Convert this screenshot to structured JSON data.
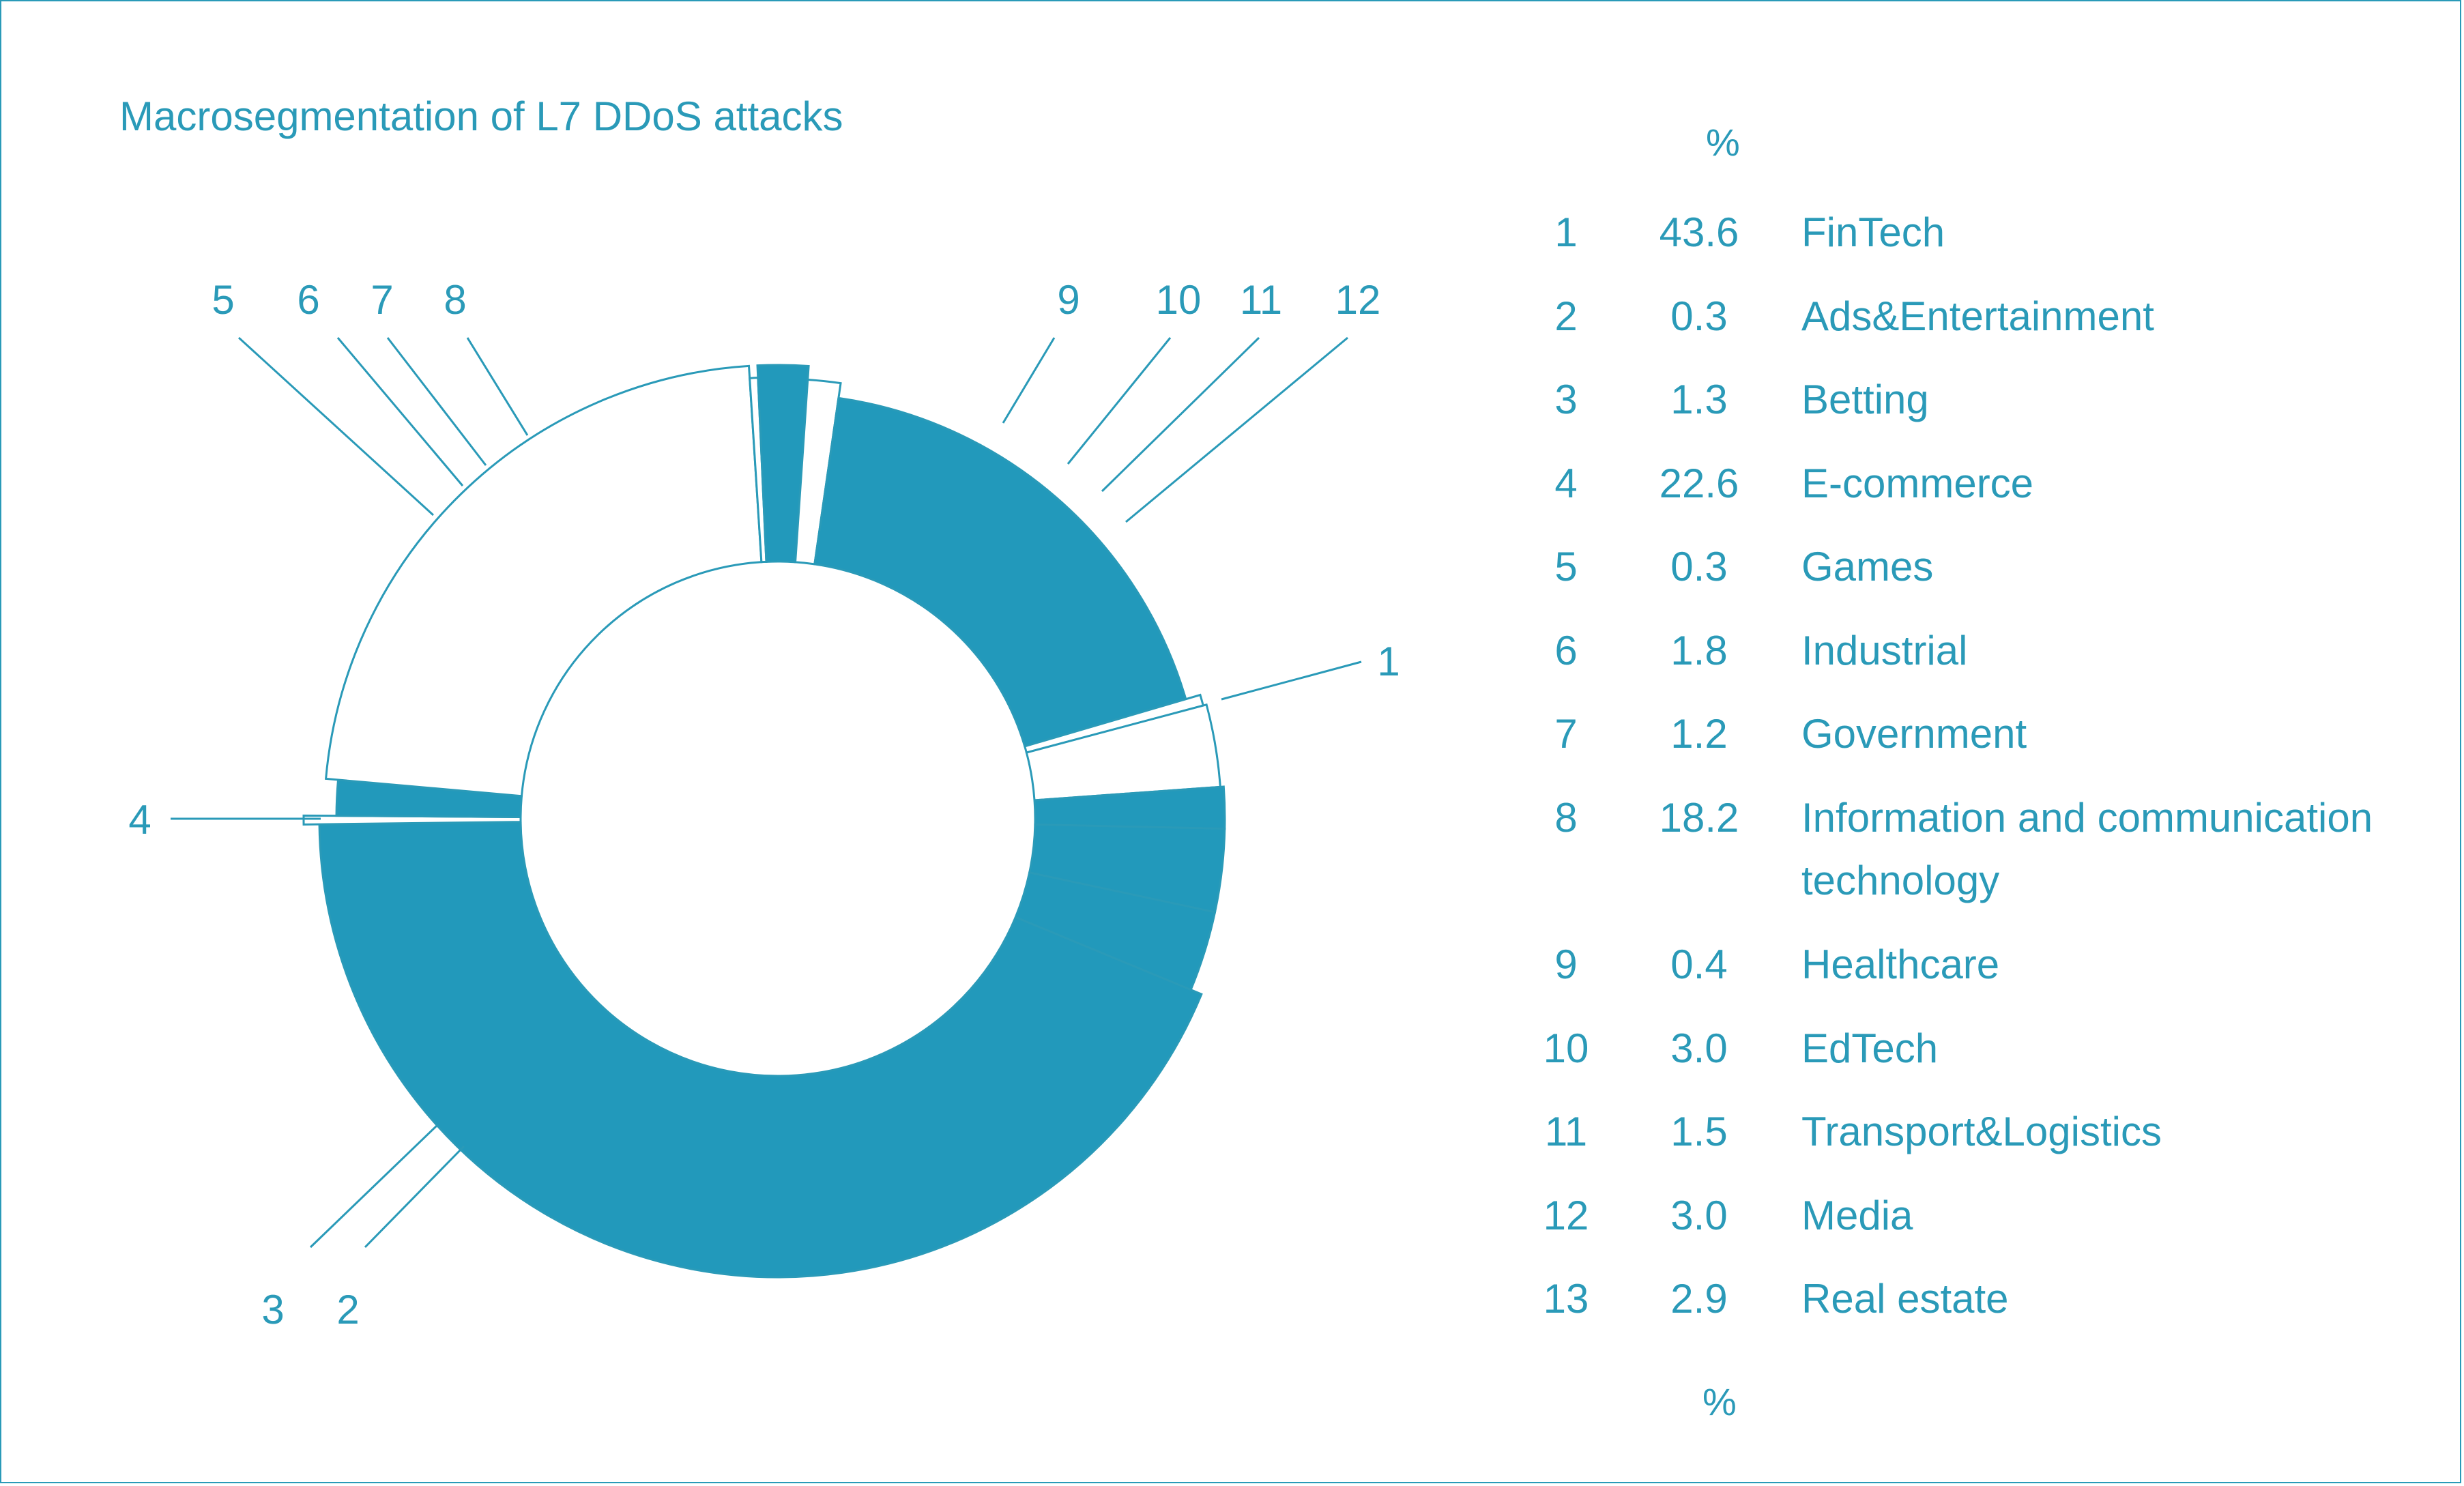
{
  "chart_data": {
    "type": "pie",
    "title": "Macrosegmentation of L7 DDoS attacks",
    "value_unit": "%",
    "slices": [
      {
        "index": "1",
        "value": 43.6,
        "label": "FinTech"
      },
      {
        "index": "2",
        "value": 0.3,
        "label": "Ads&Entertainment"
      },
      {
        "index": "3",
        "value": 1.3,
        "label": "Betting"
      },
      {
        "index": "4",
        "value": 22.6,
        "label": "E-commerce"
      },
      {
        "index": "5",
        "value": 0.3,
        "label": "Games"
      },
      {
        "index": "6",
        "value": 1.8,
        "label": "Industrial"
      },
      {
        "index": "7",
        "value": 1.2,
        "label": "Government"
      },
      {
        "index": "8",
        "value": 18.2,
        "label": "Information and communication technology"
      },
      {
        "index": "9",
        "value": 0.4,
        "label": "Healthcare"
      },
      {
        "index": "10",
        "value": 3.0,
        "label": "EdTech"
      },
      {
        "index": "11",
        "value": 1.5,
        "label": "Transport&Logistics"
      },
      {
        "index": "12",
        "value": 3.0,
        "label": "Media"
      },
      {
        "index": "13",
        "value": 2.9,
        "label": "Real estate"
      }
    ],
    "legend": {
      "header": "%",
      "footer": "%"
    },
    "colors": {
      "accent": "#2299bb",
      "outline": "#2a9ab8",
      "background": "#ffffff"
    }
  }
}
